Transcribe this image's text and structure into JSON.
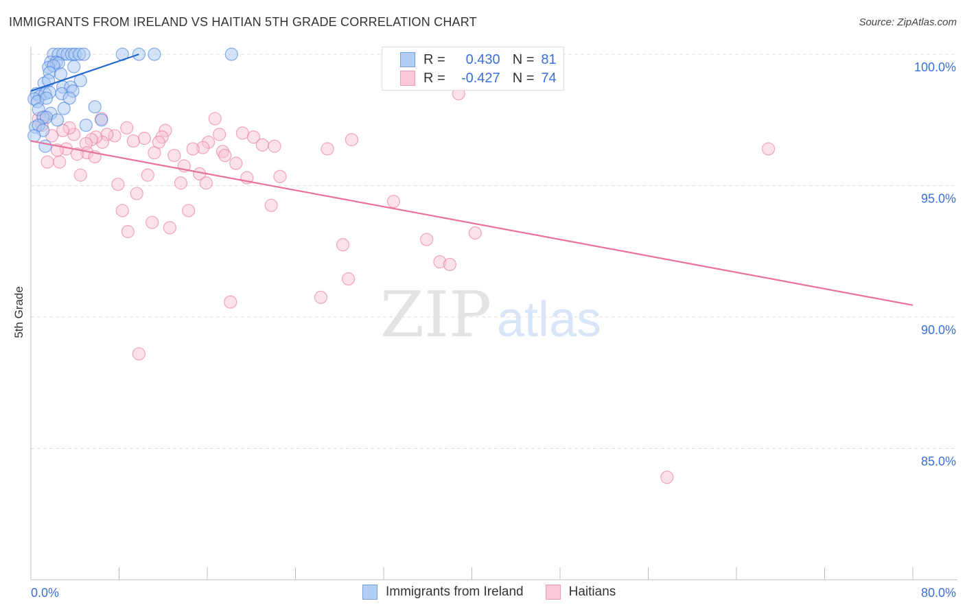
{
  "chart_data": {
    "type": "scatter",
    "title": "IMMIGRANTS FROM IRELAND VS HAITIAN 5TH GRADE CORRELATION CHART",
    "source": "Source: ZipAtlas.com",
    "xlabel": "",
    "ylabel": "5th Grade",
    "xlim": [
      0,
      80
    ],
    "ylim": [
      80,
      100.29
    ],
    "x_tick_labels": [
      "0.0%",
      "80.0%"
    ],
    "x_ticks": [
      0,
      8,
      16,
      24,
      32,
      40,
      48,
      56,
      64,
      72,
      80
    ],
    "y_ticks": [
      100,
      95,
      90,
      85
    ],
    "y_tick_labels": [
      "100.0%",
      "95.0%",
      "90.0%",
      "85.0%"
    ],
    "grid": true,
    "legend_placement": "top-center",
    "watermark": "ZIPatlas",
    "series": [
      {
        "name": "Immigrants from Ireland",
        "color": "#3a78d8",
        "fill": "#a9c8f2",
        "R": "0.430",
        "N": "81",
        "trend": [
          [
            0,
            98.6
          ],
          [
            9.8,
            100.0
          ]
        ],
        "points": [
          [
            2.05,
            100
          ],
          [
            2.5,
            100
          ],
          [
            2.9,
            100
          ],
          [
            3.3,
            100
          ],
          [
            3.7,
            100
          ],
          [
            4.0,
            100
          ],
          [
            4.4,
            100
          ],
          [
            4.8,
            100
          ],
          [
            8.3,
            100
          ],
          [
            9.8,
            100
          ],
          [
            11.2,
            100
          ],
          [
            18.2,
            100
          ],
          [
            1.8,
            99.7
          ],
          [
            2.3,
            99.7
          ],
          [
            2.5,
            99.66
          ],
          [
            1.6,
            99.5
          ],
          [
            2.05,
            99.56
          ],
          [
            3.9,
            99.53
          ],
          [
            1.7,
            99.3
          ],
          [
            2.7,
            99.25
          ],
          [
            1.2,
            98.9
          ],
          [
            1.6,
            99.0
          ],
          [
            4.5,
            99.0
          ],
          [
            2.9,
            98.75
          ],
          [
            3.6,
            98.75
          ],
          [
            3.8,
            98.6
          ],
          [
            0.5,
            98.5
          ],
          [
            0.8,
            98.4
          ],
          [
            1.3,
            98.5
          ],
          [
            1.7,
            98.55
          ],
          [
            2.8,
            98.5
          ],
          [
            3.5,
            98.33
          ],
          [
            0.3,
            98.3
          ],
          [
            0.6,
            98.2
          ],
          [
            1.4,
            98.33
          ],
          [
            5.8,
            98.0
          ],
          [
            3.0,
            97.94
          ],
          [
            0.7,
            97.9
          ],
          [
            1.8,
            97.75
          ],
          [
            1.1,
            97.6
          ],
          [
            1.4,
            97.6
          ],
          [
            6.4,
            97.5
          ],
          [
            2.4,
            97.5
          ],
          [
            5.0,
            97.3
          ],
          [
            0.4,
            97.23
          ],
          [
            0.7,
            97.3
          ],
          [
            1.1,
            97.1
          ],
          [
            0.3,
            96.9
          ],
          [
            1.3,
            96.5
          ]
        ]
      },
      {
        "name": "Haitians",
        "color": "#e8709a",
        "fill": "#f8c3d4",
        "R": "-0.427",
        "N": "74",
        "trend": [
          [
            0,
            96.7
          ],
          [
            80,
            90.45
          ]
        ],
        "points": [
          [
            32.4,
            100
          ],
          [
            38.8,
            98.5
          ],
          [
            66.9,
            96.4
          ],
          [
            57.7,
            83.9
          ],
          [
            29.1,
            96.75
          ],
          [
            26.9,
            96.4
          ],
          [
            32.9,
            94.4
          ],
          [
            35.9,
            92.95
          ],
          [
            40.3,
            93.2
          ],
          [
            37.1,
            92.1
          ],
          [
            38.0,
            92.0
          ],
          [
            28.3,
            92.75
          ],
          [
            28.8,
            91.45
          ],
          [
            26.3,
            90.75
          ],
          [
            18.1,
            90.57
          ],
          [
            9.8,
            88.6
          ],
          [
            16.7,
            97.55
          ],
          [
            19.2,
            97.0
          ],
          [
            17.1,
            96.95
          ],
          [
            20.2,
            96.85
          ],
          [
            21.0,
            96.55
          ],
          [
            22.1,
            96.5
          ],
          [
            16.1,
            96.65
          ],
          [
            15.6,
            96.45
          ],
          [
            14.7,
            96.4
          ],
          [
            17.4,
            96.3
          ],
          [
            17.6,
            96.15
          ],
          [
            18.6,
            95.85
          ],
          [
            19.6,
            95.3
          ],
          [
            22.6,
            95.35
          ],
          [
            21.8,
            94.25
          ],
          [
            13.9,
            95.75
          ],
          [
            15.3,
            95.45
          ],
          [
            13.6,
            95.1
          ],
          [
            15.9,
            95.1
          ],
          [
            14.3,
            94.05
          ],
          [
            12.6,
            93.4
          ],
          [
            11.0,
            93.6
          ],
          [
            10.6,
            95.4
          ],
          [
            9.6,
            94.7
          ],
          [
            7.9,
            95.05
          ],
          [
            8.3,
            94.05
          ],
          [
            8.8,
            93.25
          ],
          [
            12.2,
            97.1
          ],
          [
            11.9,
            96.85
          ],
          [
            11.6,
            96.65
          ],
          [
            11.2,
            96.25
          ],
          [
            10.3,
            96.8
          ],
          [
            9.3,
            96.7
          ],
          [
            8.7,
            97.2
          ],
          [
            7.6,
            96.9
          ],
          [
            6.9,
            96.95
          ],
          [
            6.4,
            97.55
          ],
          [
            6.5,
            96.65
          ],
          [
            5.9,
            96.85
          ],
          [
            5.5,
            96.75
          ],
          [
            5.0,
            96.6
          ],
          [
            5.1,
            96.25
          ],
          [
            5.8,
            96.1
          ],
          [
            4.2,
            96.2
          ],
          [
            3.2,
            96.4
          ],
          [
            2.4,
            96.35
          ],
          [
            4.5,
            95.4
          ],
          [
            3.9,
            96.95
          ],
          [
            3.5,
            97.2
          ],
          [
            2.9,
            97.1
          ],
          [
            1.9,
            96.9
          ],
          [
            1.5,
            95.9
          ],
          [
            2.6,
            95.9
          ],
          [
            0.7,
            97.55
          ],
          [
            1.0,
            97.3
          ],
          [
            1.2,
            97.6
          ],
          [
            13.0,
            96.15
          ]
        ]
      }
    ]
  },
  "legend": {
    "r_label": "R =",
    "n_label": "N ="
  }
}
